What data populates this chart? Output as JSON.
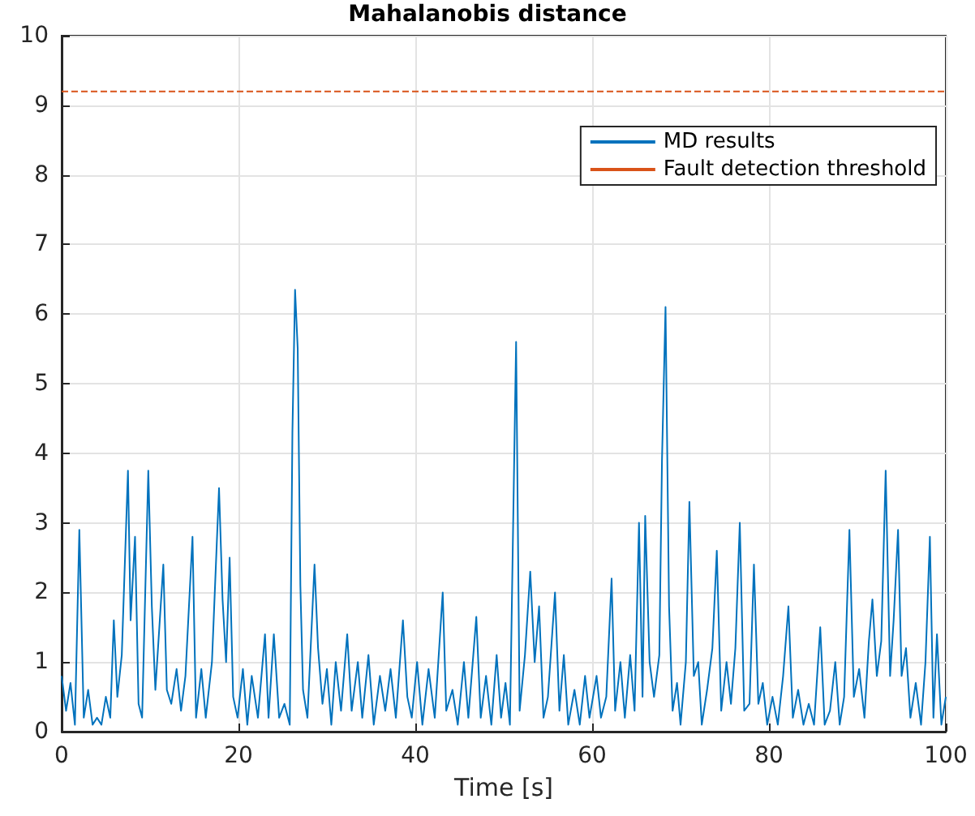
{
  "chart_data": {
    "type": "line",
    "title": "Mahalanobis distance",
    "xlabel": "Time [s]",
    "x": [
      0,
      0.5,
      1,
      1.5,
      2,
      2.5,
      3,
      3.5,
      4,
      4.5,
      5,
      5.5,
      5.9,
      6.3,
      6.8,
      7.5,
      7.8,
      8.3,
      8.7,
      9.1,
      9.8,
      10.2,
      10.6,
      11.5,
      11.9,
      12.4,
      13,
      13.5,
      14,
      14.8,
      15.2,
      15.8,
      16.3,
      17,
      17.8,
      18.2,
      18.6,
      19,
      19.4,
      19.9,
      20.5,
      21,
      21.5,
      22.2,
      23,
      23.4,
      24,
      24.6,
      25.2,
      25.8,
      26.1,
      26.4,
      26.7,
      27,
      27.3,
      27.8,
      28.6,
      29,
      29.5,
      30,
      30.5,
      31,
      31.6,
      32.3,
      32.8,
      33.5,
      34,
      34.7,
      35.3,
      36,
      36.6,
      37.2,
      37.8,
      38.6,
      39.1,
      39.6,
      40.2,
      40.8,
      41.5,
      42.2,
      43.1,
      43.5,
      44.2,
      44.8,
      45.5,
      46,
      46.9,
      47.4,
      48,
      48.6,
      49.2,
      49.7,
      50.2,
      50.7,
      51.4,
      51.8,
      52.4,
      53,
      53.5,
      54,
      54.5,
      55,
      55.8,
      56.3,
      56.8,
      57.3,
      58,
      58.6,
      59.2,
      59.7,
      60.5,
      61,
      61.6,
      62.2,
      62.6,
      63.2,
      63.7,
      64.3,
      64.8,
      65.3,
      65.7,
      66,
      66.5,
      67,
      67.6,
      67.9,
      68.3,
      68.7,
      69.1,
      69.6,
      70,
      70.6,
      71,
      71.5,
      72,
      72.4,
      73,
      73.6,
      74.1,
      74.6,
      75.2,
      75.7,
      76.2,
      76.7,
      77.2,
      77.8,
      78.3,
      78.8,
      79.3,
      79.8,
      80.4,
      81,
      81.6,
      82.2,
      82.7,
      83.3,
      83.9,
      84.5,
      85.1,
      85.8,
      86.3,
      86.9,
      87.5,
      88,
      88.5,
      89.1,
      89.6,
      90.2,
      90.8,
      91.3,
      91.7,
      92.2,
      92.7,
      93.2,
      93.7,
      94.1,
      94.6,
      95,
      95.5,
      96,
      96.6,
      97.2,
      97.7,
      98.2,
      98.6,
      99,
      99.5,
      100
    ],
    "series": [
      {
        "name": "MD results",
        "color": "#0072bd",
        "values": [
          0.8,
          0.3,
          0.7,
          0.1,
          2.9,
          0.2,
          0.6,
          0.1,
          0.2,
          0.1,
          0.5,
          0.2,
          1.6,
          0.5,
          1.1,
          3.75,
          1.6,
          2.8,
          0.4,
          0.2,
          3.75,
          1.8,
          0.6,
          2.4,
          0.6,
          0.4,
          0.9,
          0.3,
          0.8,
          2.8,
          0.2,
          0.9,
          0.2,
          1.0,
          3.5,
          1.9,
          1.0,
          2.5,
          0.5,
          0.2,
          0.9,
          0.1,
          0.8,
          0.2,
          1.4,
          0.2,
          1.4,
          0.2,
          0.4,
          0.1,
          4.3,
          6.35,
          5.5,
          2.1,
          0.6,
          0.2,
          2.4,
          1.2,
          0.4,
          0.9,
          0.1,
          1.0,
          0.3,
          1.4,
          0.3,
          1.0,
          0.2,
          1.1,
          0.1,
          0.8,
          0.3,
          0.9,
          0.2,
          1.6,
          0.5,
          0.2,
          1.0,
          0.1,
          0.9,
          0.2,
          2.0,
          0.3,
          0.6,
          0.1,
          1.0,
          0.2,
          1.65,
          0.2,
          0.8,
          0.1,
          1.1,
          0.2,
          0.7,
          0.1,
          5.6,
          0.3,
          1.1,
          2.3,
          1.0,
          1.8,
          0.2,
          0.5,
          2.0,
          0.3,
          1.1,
          0.1,
          0.6,
          0.1,
          0.8,
          0.2,
          0.8,
          0.2,
          0.5,
          2.2,
          0.3,
          1.0,
          0.2,
          1.1,
          0.3,
          3.0,
          0.5,
          3.1,
          1.0,
          0.5,
          1.1,
          3.9,
          6.1,
          1.8,
          0.3,
          0.7,
          0.1,
          1.0,
          3.3,
          0.8,
          1.0,
          0.1,
          0.6,
          1.2,
          2.6,
          0.3,
          1.0,
          0.4,
          1.2,
          3.0,
          0.3,
          0.4,
          2.4,
          0.4,
          0.7,
          0.1,
          0.5,
          0.1,
          0.8,
          1.8,
          0.2,
          0.6,
          0.1,
          0.4,
          0.1,
          1.5,
          0.1,
          0.3,
          1.0,
          0.1,
          0.5,
          2.9,
          0.5,
          0.9,
          0.2,
          1.3,
          1.9,
          0.8,
          1.3,
          3.75,
          0.8,
          1.6,
          2.9,
          0.8,
          1.2,
          0.2,
          0.7,
          0.1,
          1.0,
          2.8,
          0.2,
          1.4,
          0.1,
          0.5
        ]
      }
    ],
    "ref_lines": [
      {
        "axis": "y",
        "value": 9.2,
        "label": "Fault detection threshold",
        "color": "#d95319",
        "line_style": "dashed"
      }
    ],
    "xlim": [
      0,
      100
    ],
    "xticks": [
      0,
      20,
      40,
      60,
      80,
      100
    ],
    "ylim": [
      0,
      10
    ],
    "yticks": [
      0,
      1,
      2,
      3,
      4,
      5,
      6,
      7,
      8,
      9,
      10
    ],
    "grid": true,
    "legend": "top right",
    "line_style": "solid",
    "marker": "none"
  }
}
